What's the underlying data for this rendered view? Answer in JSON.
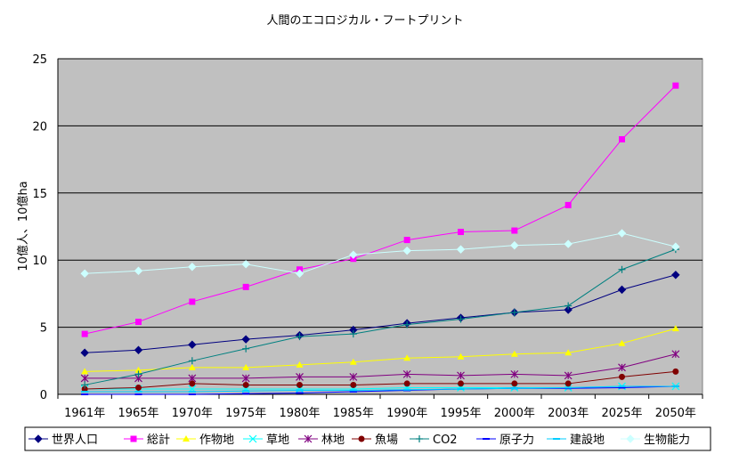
{
  "chart_data": {
    "type": "line",
    "title": "人間のエコロジカル・フートプリント",
    "ylabel": "10億人、10億ha",
    "xlabel": "",
    "categories": [
      "1961年",
      "1965年",
      "1970年",
      "1975年",
      "1980年",
      "1985年",
      "1990年",
      "1995年",
      "2000年",
      "2003年",
      "2025年",
      "2050年"
    ],
    "ylim": [
      0,
      25
    ],
    "yticks": [
      "0",
      "5",
      "10",
      "15",
      "20",
      "25"
    ],
    "grid": true,
    "legend_position": "bottom",
    "plot_background": "#c0c0c0",
    "series": [
      {
        "name": "世界人口",
        "color": "#000080",
        "marker": "diamond",
        "values": [
          3.1,
          3.3,
          3.7,
          4.1,
          4.4,
          4.8,
          5.3,
          5.7,
          6.1,
          6.3,
          7.8,
          8.9
        ]
      },
      {
        "name": "総計",
        "color": "#ff00ff",
        "marker": "square",
        "values": [
          4.5,
          5.4,
          6.9,
          8.0,
          9.3,
          10.1,
          11.5,
          12.1,
          12.2,
          14.1,
          19.0,
          23.0
        ]
      },
      {
        "name": "作物地",
        "color": "#ffff00",
        "marker": "triangle",
        "values": [
          1.7,
          1.8,
          2.0,
          2.0,
          2.2,
          2.4,
          2.7,
          2.8,
          3.0,
          3.1,
          3.8,
          4.9
        ]
      },
      {
        "name": "草地",
        "color": "#00ffff",
        "marker": "x",
        "values": [
          0.4,
          0.4,
          0.4,
          0.4,
          0.4,
          0.4,
          0.5,
          0.5,
          0.5,
          0.5,
          0.6,
          0.6
        ]
      },
      {
        "name": "林地",
        "color": "#800080",
        "marker": "star",
        "values": [
          1.2,
          1.2,
          1.2,
          1.2,
          1.3,
          1.3,
          1.5,
          1.4,
          1.5,
          1.4,
          2.0,
          3.0
        ]
      },
      {
        "name": "魚場",
        "color": "#800000",
        "marker": "circle",
        "values": [
          0.4,
          0.5,
          0.8,
          0.7,
          0.7,
          0.7,
          0.8,
          0.8,
          0.8,
          0.8,
          1.3,
          1.7
        ]
      },
      {
        "name": "CO2",
        "color": "#008080",
        "marker": "plus",
        "values": [
          0.7,
          1.5,
          2.5,
          3.4,
          4.3,
          4.5,
          5.2,
          5.6,
          6.1,
          6.6,
          9.3,
          10.8
        ]
      },
      {
        "name": "原子力",
        "color": "#0000ff",
        "marker": "dash",
        "values": [
          0.0,
          0.0,
          0.0,
          0.05,
          0.1,
          0.2,
          0.3,
          0.4,
          0.45,
          0.45,
          0.5,
          0.6
        ]
      },
      {
        "name": "建設地",
        "color": "#00ccff",
        "marker": "dash",
        "values": [
          0.2,
          0.2,
          0.2,
          0.25,
          0.3,
          0.3,
          0.35,
          0.4,
          0.45,
          0.5,
          0.6,
          0.6
        ]
      },
      {
        "name": "生物能力",
        "color": "#ccffff",
        "marker": "diamond",
        "values": [
          9.0,
          9.2,
          9.5,
          9.7,
          9.0,
          10.4,
          10.7,
          10.8,
          11.1,
          11.2,
          12.0,
          11.0
        ]
      }
    ]
  }
}
